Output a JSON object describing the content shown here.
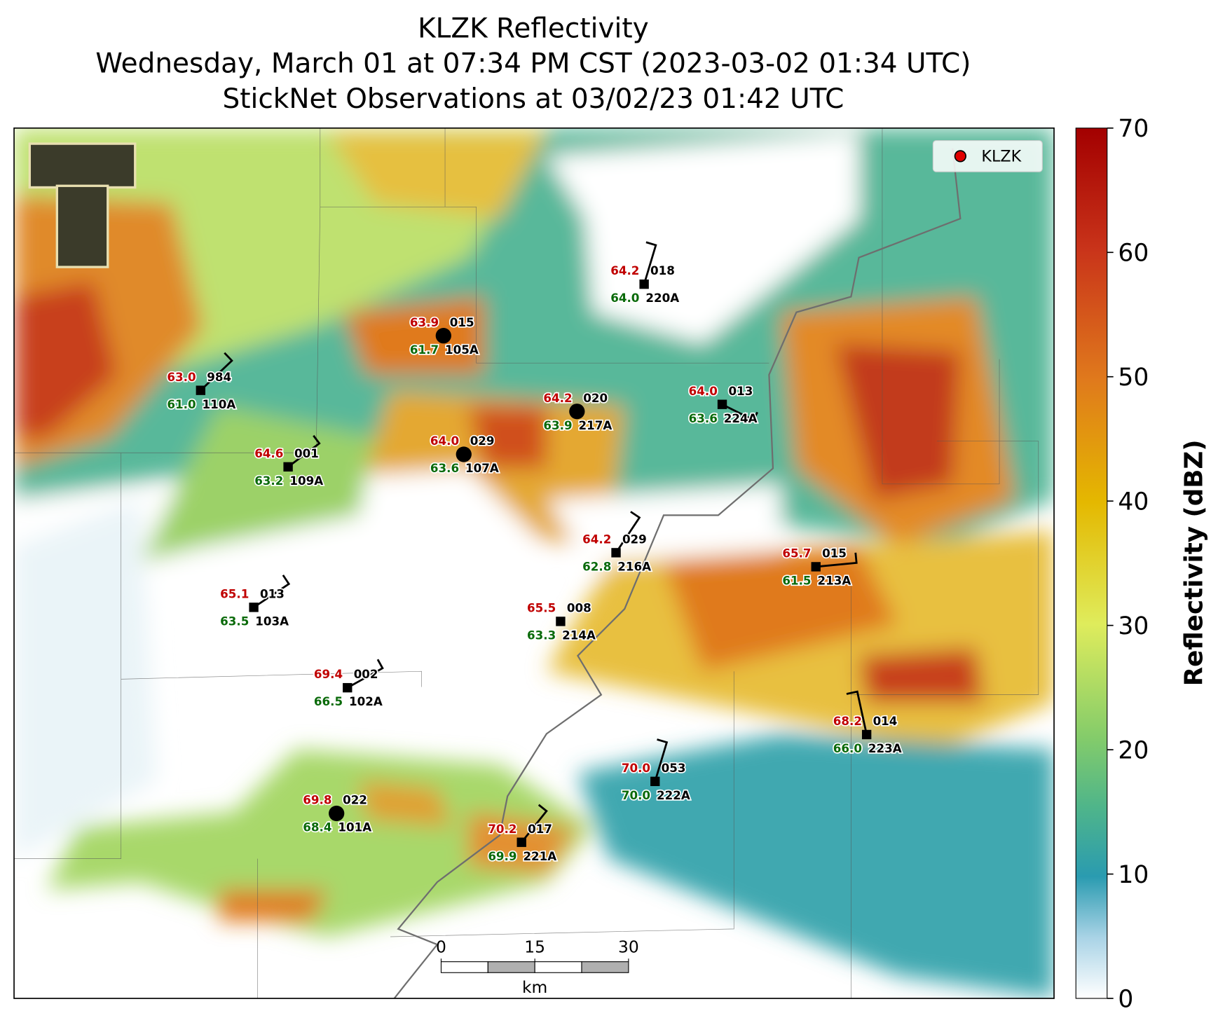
{
  "title": [
    "KLZK Reflectivity",
    "Wednesday, March 01 at 07:34 PM CST (2023-03-02 01:34 UTC)",
    "StickNet Observations at 03/02/23 01:42 UTC"
  ],
  "legend": {
    "label": "KLZK"
  },
  "colorbar": {
    "label": "Reflectivity (dBZ)",
    "lim": [
      0,
      70
    ],
    "ticks": [
      0,
      10,
      20,
      30,
      40,
      50,
      60,
      70
    ]
  },
  "scale_bar": {
    "ticks": [
      0,
      15,
      30
    ],
    "unit": "km"
  },
  "stations": [
    {
      "temp": "64.2",
      "dewpoint": "64.0",
      "code": "018",
      "id": "220A"
    },
    {
      "temp": "63.9",
      "dewpoint": "61.7",
      "code": "015",
      "id": "105A"
    },
    {
      "temp": "63.0",
      "dewpoint": "61.0",
      "code": "984",
      "id": "110A"
    },
    {
      "temp": "64.2",
      "dewpoint": "63.9",
      "code": "020",
      "id": "217A"
    },
    {
      "temp": "64.0",
      "dewpoint": "63.6",
      "code": "013",
      "id": "224A"
    },
    {
      "temp": "64.0",
      "dewpoint": "63.6",
      "code": "029",
      "id": "107A"
    },
    {
      "temp": "64.6",
      "dewpoint": "63.2",
      "code": "001",
      "id": "109A"
    },
    {
      "temp": "64.2",
      "dewpoint": "62.8",
      "code": "029",
      "id": "216A"
    },
    {
      "temp": "65.7",
      "dewpoint": "61.5",
      "code": "015",
      "id": "213A"
    },
    {
      "temp": "65.1",
      "dewpoint": "63.5",
      "code": "013",
      "id": "103A"
    },
    {
      "temp": "65.5",
      "dewpoint": "63.3",
      "code": "008",
      "id": "214A"
    },
    {
      "temp": "69.4",
      "dewpoint": "66.5",
      "code": "002",
      "id": "102A"
    },
    {
      "temp": "68.2",
      "dewpoint": "66.0",
      "code": "014",
      "id": "223A"
    },
    {
      "temp": "70.0",
      "dewpoint": "70.0",
      "code": "053",
      "id": "222A"
    },
    {
      "temp": "69.8",
      "dewpoint": "68.4",
      "code": "022",
      "id": "101A"
    },
    {
      "temp": "70.2",
      "dewpoint": "69.9",
      "code": "017",
      "id": "221A"
    }
  ]
}
